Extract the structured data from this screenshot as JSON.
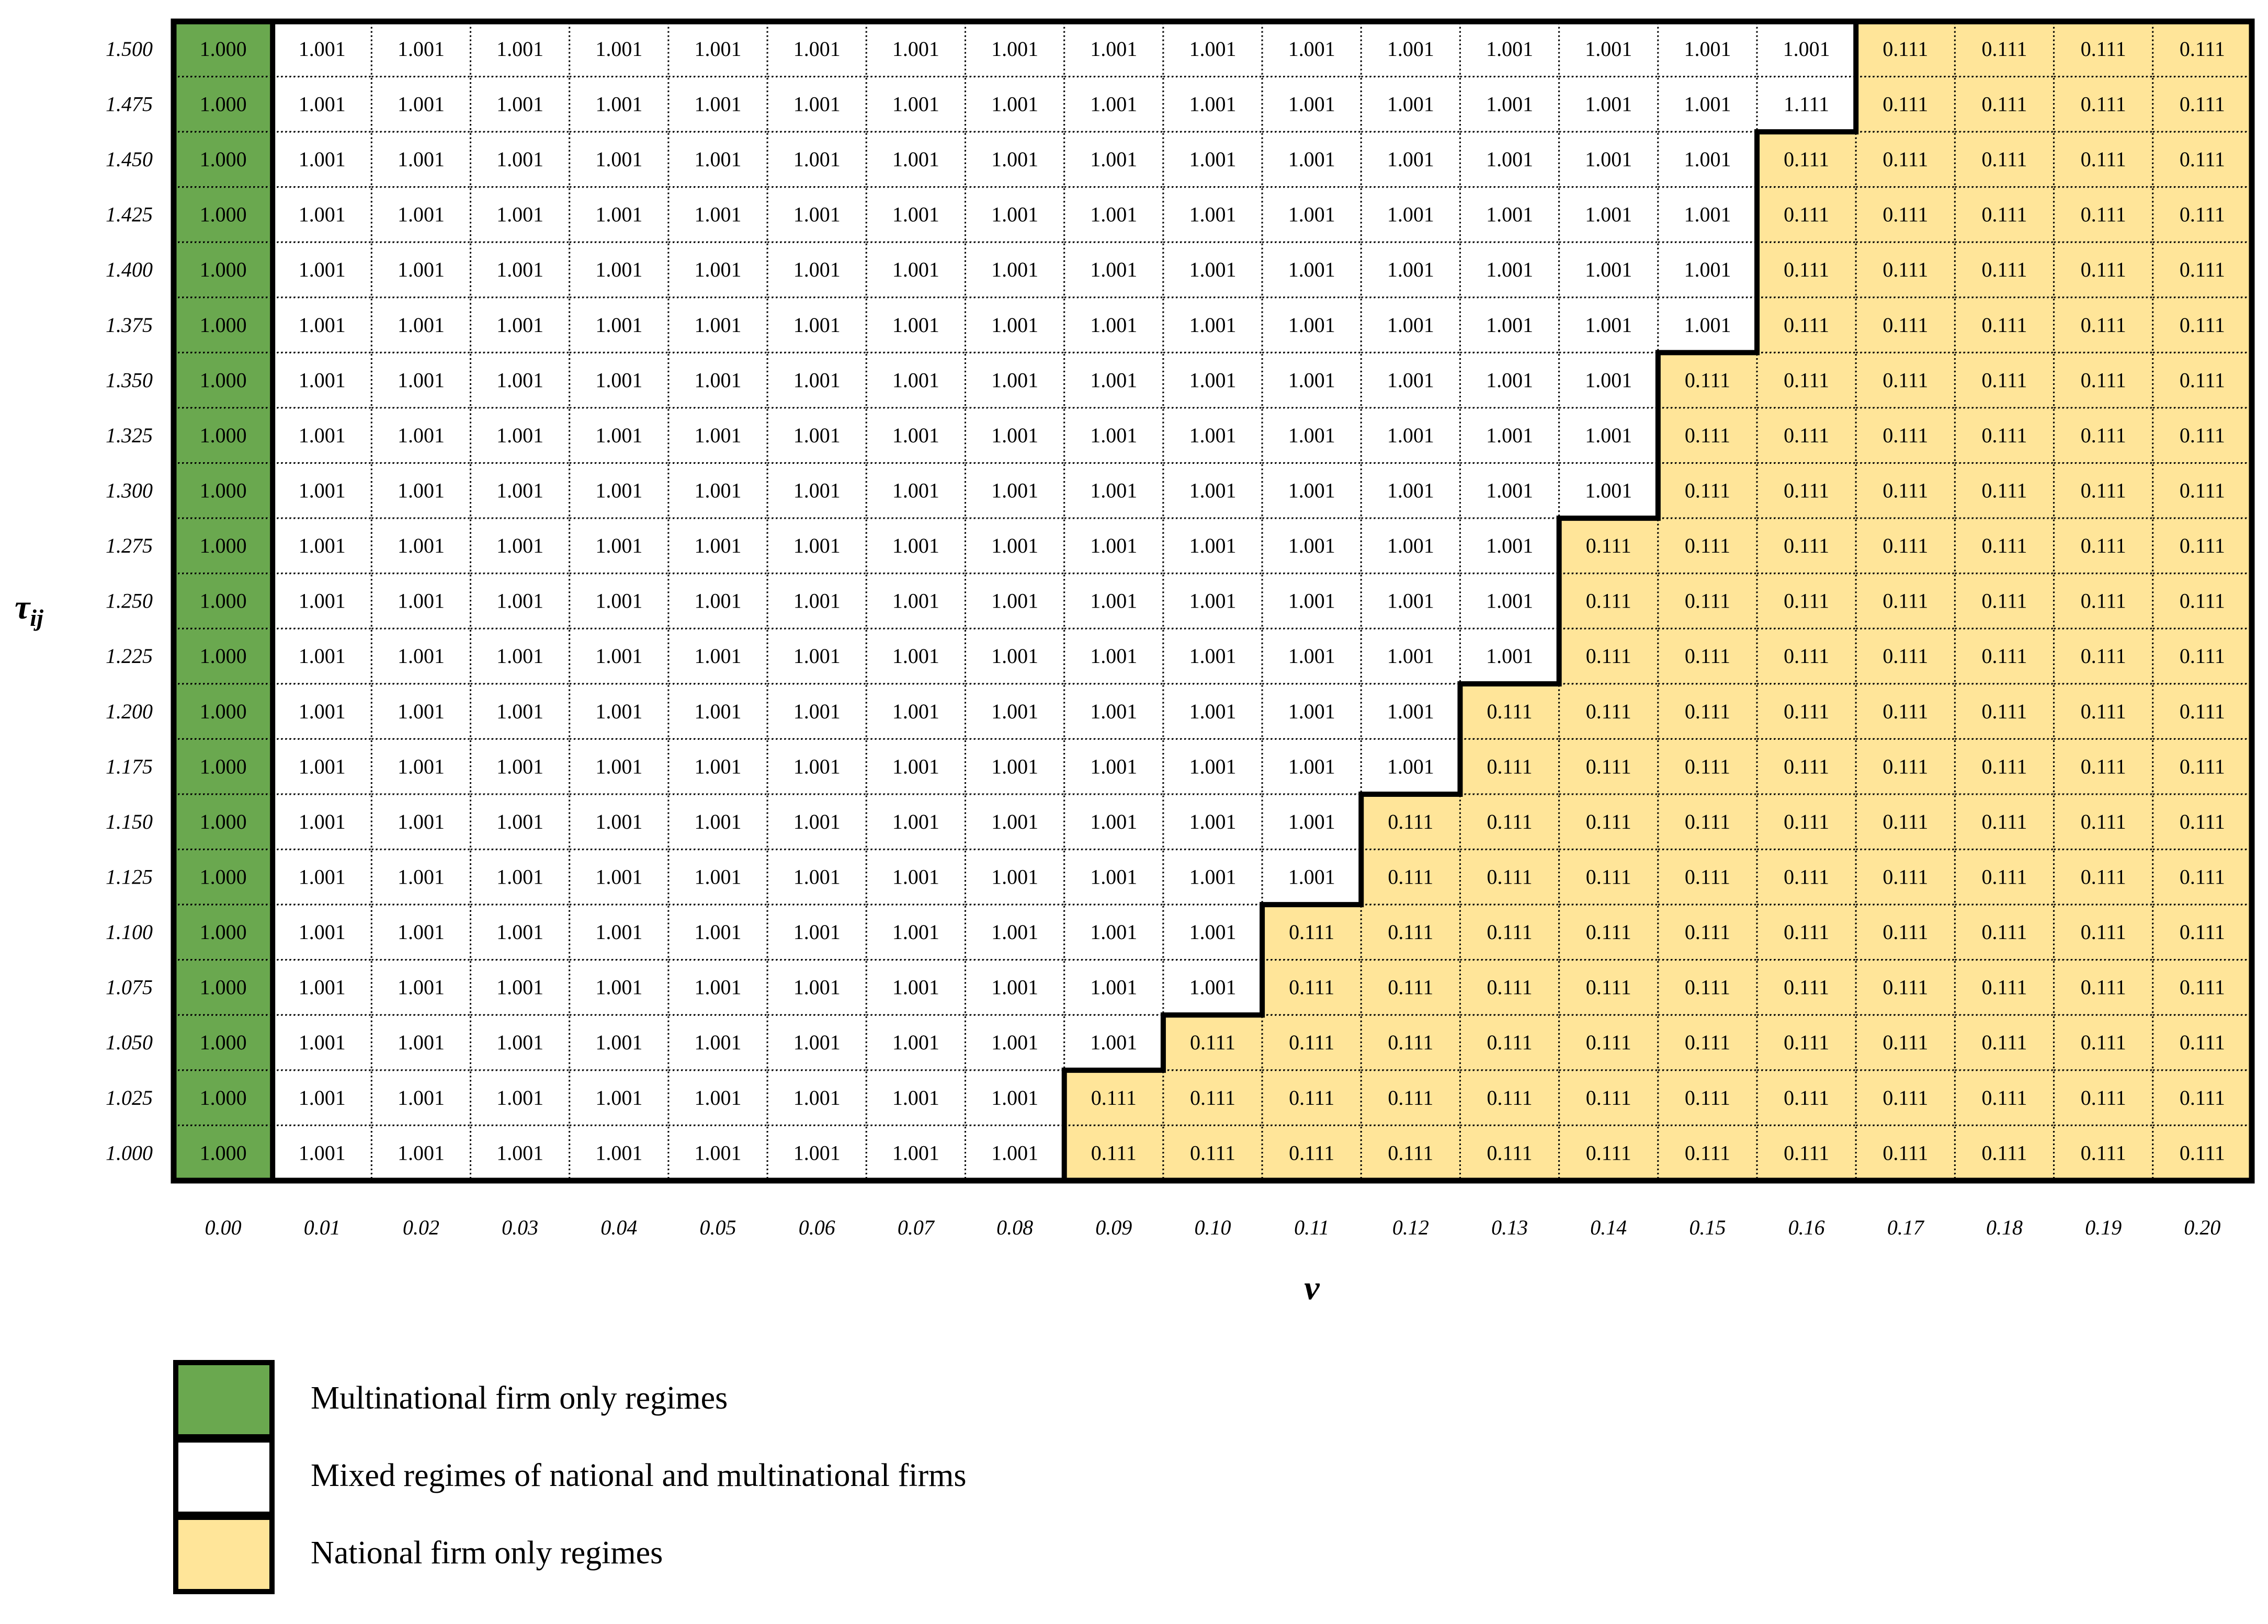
{
  "table": {
    "columns": [
      "0.00",
      "0.01",
      "0.02",
      "0.03",
      "0.04",
      "0.05",
      "0.06",
      "0.07",
      "0.08",
      "0.09",
      "0.10",
      "0.11",
      "0.12",
      "0.13",
      "0.14",
      "0.15",
      "0.16",
      "0.17",
      "0.18",
      "0.19",
      "0.20"
    ],
    "x_label": "v",
    "y_label": {
      "symbol": "τ",
      "subscript": "ij"
    },
    "rows": [
      {
        "label": "1.500",
        "multinational": [
          "1.000"
        ],
        "mixed": [
          "1.001",
          "1.001",
          "1.001",
          "1.001",
          "1.001",
          "1.001",
          "1.001",
          "1.001",
          "1.001",
          "1.001",
          "1.001",
          "1.001",
          "1.001",
          "1.001",
          "1.001",
          "1.001"
        ],
        "national": [
          "0.111",
          "0.111",
          "0.111",
          "0.111"
        ]
      },
      {
        "label": "1.475",
        "multinational": [
          "1.000"
        ],
        "mixed": [
          "1.001",
          "1.001",
          "1.001",
          "1.001",
          "1.001",
          "1.001",
          "1.001",
          "1.001",
          "1.001",
          "1.001",
          "1.001",
          "1.001",
          "1.001",
          "1.001",
          "1.001",
          "1.111"
        ],
        "national": [
          "0.111",
          "0.111",
          "0.111",
          "0.111"
        ]
      },
      {
        "label": "1.450",
        "multinational": [
          "1.000"
        ],
        "mixed": [
          "1.001",
          "1.001",
          "1.001",
          "1.001",
          "1.001",
          "1.001",
          "1.001",
          "1.001",
          "1.001",
          "1.001",
          "1.001",
          "1.001",
          "1.001",
          "1.001",
          "1.001"
        ],
        "national": [
          "0.111",
          "0.111",
          "0.111",
          "0.111",
          "0.111"
        ]
      },
      {
        "label": "1.425",
        "multinational": [
          "1.000"
        ],
        "mixed": [
          "1.001",
          "1.001",
          "1.001",
          "1.001",
          "1.001",
          "1.001",
          "1.001",
          "1.001",
          "1.001",
          "1.001",
          "1.001",
          "1.001",
          "1.001",
          "1.001",
          "1.001"
        ],
        "national": [
          "0.111",
          "0.111",
          "0.111",
          "0.111",
          "0.111"
        ]
      },
      {
        "label": "1.400",
        "multinational": [
          "1.000"
        ],
        "mixed": [
          "1.001",
          "1.001",
          "1.001",
          "1.001",
          "1.001",
          "1.001",
          "1.001",
          "1.001",
          "1.001",
          "1.001",
          "1.001",
          "1.001",
          "1.001",
          "1.001",
          "1.001"
        ],
        "national": [
          "0.111",
          "0.111",
          "0.111",
          "0.111",
          "0.111"
        ]
      },
      {
        "label": "1.375",
        "multinational": [
          "1.000"
        ],
        "mixed": [
          "1.001",
          "1.001",
          "1.001",
          "1.001",
          "1.001",
          "1.001",
          "1.001",
          "1.001",
          "1.001",
          "1.001",
          "1.001",
          "1.001",
          "1.001",
          "1.001",
          "1.001"
        ],
        "national": [
          "0.111",
          "0.111",
          "0.111",
          "0.111",
          "0.111"
        ]
      },
      {
        "label": "1.350",
        "multinational": [
          "1.000"
        ],
        "mixed": [
          "1.001",
          "1.001",
          "1.001",
          "1.001",
          "1.001",
          "1.001",
          "1.001",
          "1.001",
          "1.001",
          "1.001",
          "1.001",
          "1.001",
          "1.001",
          "1.001"
        ],
        "national": [
          "0.111",
          "0.111",
          "0.111",
          "0.111",
          "0.111",
          "0.111"
        ]
      },
      {
        "label": "1.325",
        "multinational": [
          "1.000"
        ],
        "mixed": [
          "1.001",
          "1.001",
          "1.001",
          "1.001",
          "1.001",
          "1.001",
          "1.001",
          "1.001",
          "1.001",
          "1.001",
          "1.001",
          "1.001",
          "1.001",
          "1.001"
        ],
        "national": [
          "0.111",
          "0.111",
          "0.111",
          "0.111",
          "0.111",
          "0.111"
        ]
      },
      {
        "label": "1.300",
        "multinational": [
          "1.000"
        ],
        "mixed": [
          "1.001",
          "1.001",
          "1.001",
          "1.001",
          "1.001",
          "1.001",
          "1.001",
          "1.001",
          "1.001",
          "1.001",
          "1.001",
          "1.001",
          "1.001",
          "1.001"
        ],
        "national": [
          "0.111",
          "0.111",
          "0.111",
          "0.111",
          "0.111",
          "0.111"
        ]
      },
      {
        "label": "1.275",
        "multinational": [
          "1.000"
        ],
        "mixed": [
          "1.001",
          "1.001",
          "1.001",
          "1.001",
          "1.001",
          "1.001",
          "1.001",
          "1.001",
          "1.001",
          "1.001",
          "1.001",
          "1.001",
          "1.001"
        ],
        "national": [
          "0.111",
          "0.111",
          "0.111",
          "0.111",
          "0.111",
          "0.111",
          "0.111"
        ]
      },
      {
        "label": "1.250",
        "multinational": [
          "1.000"
        ],
        "mixed": [
          "1.001",
          "1.001",
          "1.001",
          "1.001",
          "1.001",
          "1.001",
          "1.001",
          "1.001",
          "1.001",
          "1.001",
          "1.001",
          "1.001",
          "1.001"
        ],
        "national": [
          "0.111",
          "0.111",
          "0.111",
          "0.111",
          "0.111",
          "0.111",
          "0.111"
        ]
      },
      {
        "label": "1.225",
        "multinational": [
          "1.000"
        ],
        "mixed": [
          "1.001",
          "1.001",
          "1.001",
          "1.001",
          "1.001",
          "1.001",
          "1.001",
          "1.001",
          "1.001",
          "1.001",
          "1.001",
          "1.001",
          "1.001"
        ],
        "national": [
          "0.111",
          "0.111",
          "0.111",
          "0.111",
          "0.111",
          "0.111",
          "0.111"
        ]
      },
      {
        "label": "1.200",
        "multinational": [
          "1.000"
        ],
        "mixed": [
          "1.001",
          "1.001",
          "1.001",
          "1.001",
          "1.001",
          "1.001",
          "1.001",
          "1.001",
          "1.001",
          "1.001",
          "1.001",
          "1.001"
        ],
        "national": [
          "0.111",
          "0.111",
          "0.111",
          "0.111",
          "0.111",
          "0.111",
          "0.111",
          "0.111"
        ]
      },
      {
        "label": "1.175",
        "multinational": [
          "1.000"
        ],
        "mixed": [
          "1.001",
          "1.001",
          "1.001",
          "1.001",
          "1.001",
          "1.001",
          "1.001",
          "1.001",
          "1.001",
          "1.001",
          "1.001",
          "1.001"
        ],
        "national": [
          "0.111",
          "0.111",
          "0.111",
          "0.111",
          "0.111",
          "0.111",
          "0.111",
          "0.111"
        ]
      },
      {
        "label": "1.150",
        "multinational": [
          "1.000"
        ],
        "mixed": [
          "1.001",
          "1.001",
          "1.001",
          "1.001",
          "1.001",
          "1.001",
          "1.001",
          "1.001",
          "1.001",
          "1.001",
          "1.001"
        ],
        "national": [
          "0.111",
          "0.111",
          "0.111",
          "0.111",
          "0.111",
          "0.111",
          "0.111",
          "0.111",
          "0.111"
        ]
      },
      {
        "label": "1.125",
        "multinational": [
          "1.000"
        ],
        "mixed": [
          "1.001",
          "1.001",
          "1.001",
          "1.001",
          "1.001",
          "1.001",
          "1.001",
          "1.001",
          "1.001",
          "1.001",
          "1.001"
        ],
        "national": [
          "0.111",
          "0.111",
          "0.111",
          "0.111",
          "0.111",
          "0.111",
          "0.111",
          "0.111",
          "0.111"
        ]
      },
      {
        "label": "1.100",
        "multinational": [
          "1.000"
        ],
        "mixed": [
          "1.001",
          "1.001",
          "1.001",
          "1.001",
          "1.001",
          "1.001",
          "1.001",
          "1.001",
          "1.001",
          "1.001"
        ],
        "national": [
          "0.111",
          "0.111",
          "0.111",
          "0.111",
          "0.111",
          "0.111",
          "0.111",
          "0.111",
          "0.111",
          "0.111"
        ]
      },
      {
        "label": "1.075",
        "multinational": [
          "1.000"
        ],
        "mixed": [
          "1.001",
          "1.001",
          "1.001",
          "1.001",
          "1.001",
          "1.001",
          "1.001",
          "1.001",
          "1.001",
          "1.001"
        ],
        "national": [
          "0.111",
          "0.111",
          "0.111",
          "0.111",
          "0.111",
          "0.111",
          "0.111",
          "0.111",
          "0.111",
          "0.111"
        ]
      },
      {
        "label": "1.050",
        "multinational": [
          "1.000"
        ],
        "mixed": [
          "1.001",
          "1.001",
          "1.001",
          "1.001",
          "1.001",
          "1.001",
          "1.001",
          "1.001",
          "1.001"
        ],
        "national": [
          "0.111",
          "0.111",
          "0.111",
          "0.111",
          "0.111",
          "0.111",
          "0.111",
          "0.111",
          "0.111",
          "0.111",
          "0.111"
        ]
      },
      {
        "label": "1.025",
        "multinational": [
          "1.000"
        ],
        "mixed": [
          "1.001",
          "1.001",
          "1.001",
          "1.001",
          "1.001",
          "1.001",
          "1.001",
          "1.001"
        ],
        "national": [
          "0.111",
          "0.111",
          "0.111",
          "0.111",
          "0.111",
          "0.111",
          "0.111",
          "0.111",
          "0.111",
          "0.111",
          "0.111",
          "0.111"
        ]
      },
      {
        "label": "1.000",
        "multinational": [
          "1.000"
        ],
        "mixed": [
          "1.001",
          "1.001",
          "1.001",
          "1.001",
          "1.001",
          "1.001",
          "1.001",
          "1.001"
        ],
        "national": [
          "0.111",
          "0.111",
          "0.111",
          "0.111",
          "0.111",
          "0.111",
          "0.111",
          "0.111",
          "0.111",
          "0.111",
          "0.111",
          "0.111"
        ]
      }
    ]
  },
  "legend": [
    {
      "key": "multinational",
      "label": "Multinational firm only regimes",
      "color": "#6aa84f"
    },
    {
      "key": "mixed",
      "label": "Mixed regimes of national and multinational firms",
      "color": "#ffffff"
    },
    {
      "key": "national",
      "label": "National firm only regimes",
      "color": "#ffe599"
    }
  ]
}
